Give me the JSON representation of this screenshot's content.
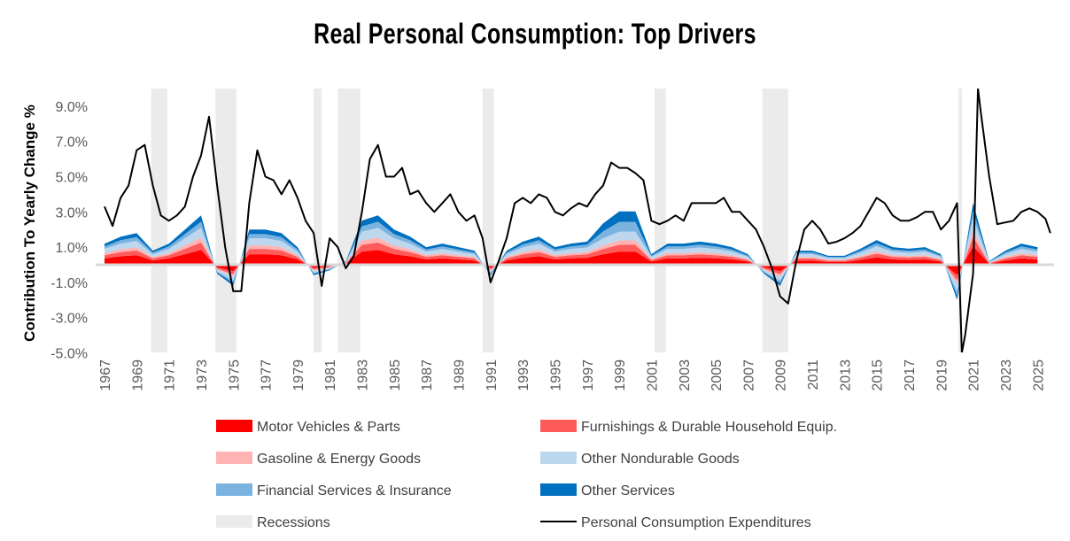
{
  "chart_data": {
    "type": "area",
    "title": "Real Personal Consumption: Top Drivers",
    "xlabel": "",
    "ylabel": "Contribution To Yearly Change %",
    "ylim": [
      -5,
      10
    ],
    "xlim": [
      1967,
      2025.9
    ],
    "y_ticks": [
      9,
      7,
      5,
      3,
      1,
      -1,
      -3,
      -5
    ],
    "y_tick_labels": [
      "9.0%",
      "7.0%",
      "5.0%",
      "3.0%",
      "1.0%",
      "-1.0%",
      "-3.0%",
      "-5.0%"
    ],
    "x_tick_labels": [
      "1967",
      "1969",
      "1971",
      "1973",
      "1975",
      "1977",
      "1979",
      "1981",
      "1983",
      "1985",
      "1987",
      "1989",
      "1991",
      "1993",
      "1995",
      "1997",
      "1999",
      "2001",
      "2003",
      "2005",
      "2007",
      "2009",
      "2011",
      "2013",
      "2015",
      "2017",
      "2019",
      "2021",
      "2023",
      "2025"
    ],
    "grid": false,
    "legend_placement": "bottom",
    "stack_years": [
      1967,
      1968,
      1969,
      1970,
      1971,
      1972,
      1973,
      1974,
      1975,
      1976,
      1977,
      1978,
      1979,
      1980,
      1981,
      1982,
      1983,
      1984,
      1985,
      1986,
      1987,
      1988,
      1989,
      1990,
      1991,
      1992,
      1993,
      1994,
      1995,
      1996,
      1997,
      1998,
      1999,
      2000,
      2001,
      2002,
      2003,
      2004,
      2005,
      2006,
      2007,
      2008,
      2009,
      2010,
      2011,
      2012,
      2013,
      2014,
      2015,
      2016,
      2017,
      2018,
      2019,
      2020,
      2021,
      2022,
      2023,
      2024,
      2025
    ],
    "series": [
      {
        "name": "Motor Vehicles & Parts",
        "color": "#FF0000",
        "values": [
          0.36,
          0.48,
          0.54,
          0.24,
          0.36,
          0.6,
          0.84,
          -0.15,
          -0.36,
          0.6,
          0.6,
          0.54,
          0.3,
          -0.18,
          -0.09,
          0.06,
          0.75,
          0.84,
          0.6,
          0.48,
          0.3,
          0.36,
          0.3,
          0.24,
          -0.18,
          0.24,
          0.39,
          0.48,
          0.3,
          0.36,
          0.39,
          0.6,
          0.75,
          0.75,
          0.18,
          0.36,
          0.36,
          0.39,
          0.36,
          0.3,
          0.18,
          -0.15,
          -0.36,
          0.24,
          0.24,
          0.15,
          0.15,
          0.27,
          0.42,
          0.3,
          0.27,
          0.3,
          0.18,
          -0.6,
          1.05,
          0.06,
          0.24,
          0.36,
          0.3
        ]
      },
      {
        "name": "Furnishings & Durable Household Equip.",
        "color": "#FF5B5B",
        "values": [
          0.18,
          0.24,
          0.27,
          0.12,
          0.18,
          0.3,
          0.42,
          -0.08,
          -0.18,
          0.3,
          0.3,
          0.27,
          0.15,
          -0.09,
          -0.05,
          0.03,
          0.38,
          0.42,
          0.3,
          0.24,
          0.15,
          0.18,
          0.15,
          0.12,
          -0.09,
          0.12,
          0.2,
          0.24,
          0.15,
          0.18,
          0.2,
          0.3,
          0.38,
          0.38,
          0.09,
          0.18,
          0.18,
          0.2,
          0.18,
          0.15,
          0.09,
          -0.08,
          -0.18,
          0.12,
          0.12,
          0.08,
          0.08,
          0.14,
          0.21,
          0.15,
          0.14,
          0.15,
          0.09,
          -0.3,
          0.53,
          0.03,
          0.12,
          0.18,
          0.15
        ]
      },
      {
        "name": "Gasoline & Energy Goods",
        "color": "#FFB3B3",
        "values": [
          0.12,
          0.16,
          0.18,
          0.08,
          0.12,
          0.2,
          0.28,
          -0.05,
          -0.12,
          0.2,
          0.2,
          0.18,
          0.1,
          -0.06,
          -0.03,
          0.02,
          0.25,
          0.28,
          0.2,
          0.16,
          0.1,
          0.12,
          0.1,
          0.08,
          -0.06,
          0.08,
          0.13,
          0.16,
          0.1,
          0.12,
          0.13,
          0.2,
          0.25,
          0.25,
          0.06,
          0.12,
          0.12,
          0.13,
          0.12,
          0.1,
          0.06,
          -0.05,
          -0.12,
          0.08,
          0.08,
          0.05,
          0.05,
          0.09,
          0.14,
          0.1,
          0.09,
          0.1,
          0.06,
          -0.2,
          0.35,
          0.02,
          0.08,
          0.12,
          0.1
        ]
      },
      {
        "name": "Other Nondurable Goods",
        "color": "#BDD7EE",
        "values": [
          0.24,
          0.32,
          0.36,
          0.16,
          0.24,
          0.4,
          0.56,
          -0.1,
          -0.24,
          0.4,
          0.4,
          0.36,
          0.2,
          -0.12,
          -0.06,
          0.04,
          0.5,
          0.56,
          0.4,
          0.32,
          0.2,
          0.24,
          0.2,
          0.16,
          -0.12,
          0.16,
          0.26,
          0.32,
          0.2,
          0.24,
          0.26,
          0.4,
          0.5,
          0.5,
          0.12,
          0.24,
          0.24,
          0.26,
          0.24,
          0.2,
          0.12,
          -0.1,
          -0.24,
          0.16,
          0.16,
          0.1,
          0.1,
          0.18,
          0.28,
          0.2,
          0.18,
          0.2,
          0.12,
          -0.4,
          0.7,
          0.04,
          0.16,
          0.24,
          0.2
        ]
      },
      {
        "name": "Financial Services & Insurance",
        "color": "#7AB3E0",
        "values": [
          0.14,
          0.19,
          0.22,
          0.1,
          0.14,
          0.24,
          0.34,
          -0.06,
          -0.14,
          0.24,
          0.24,
          0.22,
          0.12,
          -0.07,
          -0.04,
          0.02,
          0.3,
          0.34,
          0.24,
          0.19,
          0.12,
          0.14,
          0.12,
          0.1,
          -0.07,
          0.1,
          0.16,
          0.19,
          0.12,
          0.14,
          0.16,
          0.4,
          0.55,
          0.55,
          0.07,
          0.14,
          0.14,
          0.16,
          0.14,
          0.12,
          0.07,
          -0.06,
          -0.14,
          0.1,
          0.1,
          0.06,
          0.06,
          0.11,
          0.17,
          0.12,
          0.11,
          0.12,
          0.07,
          -0.24,
          0.42,
          0.02,
          0.1,
          0.14,
          0.12
        ]
      },
      {
        "name": "Other Services",
        "color": "#0070C0",
        "values": [
          0.15,
          0.2,
          0.23,
          0.1,
          0.15,
          0.26,
          0.36,
          -0.07,
          -0.15,
          0.26,
          0.26,
          0.23,
          0.13,
          -0.08,
          -0.04,
          0.03,
          0.33,
          0.36,
          0.26,
          0.21,
          0.13,
          0.16,
          0.13,
          0.1,
          -0.08,
          0.1,
          0.17,
          0.21,
          0.13,
          0.16,
          0.17,
          0.45,
          0.6,
          0.6,
          0.08,
          0.16,
          0.16,
          0.17,
          0.16,
          0.13,
          0.08,
          -0.07,
          -0.16,
          0.1,
          0.1,
          0.07,
          0.07,
          0.12,
          0.18,
          0.13,
          0.12,
          0.13,
          0.08,
          -0.26,
          0.46,
          0.03,
          0.1,
          0.16,
          0.13
        ]
      }
    ],
    "line": {
      "name": "Personal Consumption Expenditures",
      "color": "#000000",
      "x": [
        1967,
        1967.5,
        1968,
        1968.5,
        1969,
        1969.5,
        1970,
        1970.5,
        1971,
        1971.5,
        1972,
        1972.5,
        1973,
        1973.5,
        1974,
        1974.5,
        1975,
        1975.5,
        1976,
        1976.5,
        1977,
        1977.5,
        1978,
        1978.5,
        1979,
        1979.5,
        1980,
        1980.5,
        1981,
        1981.5,
        1982,
        1982.5,
        1983,
        1983.5,
        1984,
        1984.5,
        1985,
        1985.5,
        1986,
        1986.5,
        1987,
        1987.5,
        1988,
        1988.5,
        1989,
        1989.5,
        1990,
        1990.5,
        1991,
        1991.5,
        1992,
        1992.5,
        1993,
        1993.5,
        1994,
        1994.5,
        1995,
        1995.5,
        1996,
        1996.5,
        1997,
        1997.5,
        1998,
        1998.5,
        1999,
        1999.5,
        2000,
        2000.5,
        2001,
        2001.5,
        2002,
        2002.5,
        2003,
        2003.5,
        2004,
        2004.5,
        2005,
        2005.5,
        2006,
        2006.5,
        2007,
        2007.5,
        2008,
        2008.5,
        2009,
        2009.5,
        2010,
        2010.5,
        2011,
        2011.5,
        2012,
        2012.5,
        2013,
        2013.5,
        2014,
        2014.5,
        2015,
        2015.5,
        2016,
        2016.5,
        2017,
        2017.5,
        2018,
        2018.5,
        2019,
        2019.5,
        2020,
        2020.3,
        2020.5,
        2021,
        2021.3,
        2021.5,
        2022,
        2022.5,
        2023,
        2023.5,
        2024,
        2024.5,
        2025,
        2025.5,
        2025.8
      ],
      "y": [
        3.3,
        2.2,
        3.8,
        4.5,
        6.5,
        6.8,
        4.5,
        2.8,
        2.5,
        2.8,
        3.3,
        5.0,
        6.2,
        8.4,
        4.5,
        1.0,
        -1.5,
        -1.5,
        3.5,
        6.5,
        5.0,
        4.8,
        4.0,
        4.8,
        3.8,
        2.5,
        1.8,
        -1.2,
        1.5,
        1.0,
        -0.2,
        0.5,
        3.0,
        6.0,
        6.8,
        5.0,
        5.0,
        5.5,
        4.0,
        4.2,
        3.5,
        3.0,
        3.5,
        4.0,
        3.0,
        2.5,
        2.8,
        1.5,
        -1.0,
        0.2,
        1.5,
        3.5,
        3.8,
        3.5,
        4.0,
        3.8,
        3.0,
        2.8,
        3.2,
        3.5,
        3.3,
        4.0,
        4.5,
        5.8,
        5.5,
        5.5,
        5.2,
        4.8,
        2.5,
        2.3,
        2.5,
        2.8,
        2.5,
        3.5,
        3.5,
        3.5,
        3.5,
        3.8,
        3.0,
        3.0,
        2.5,
        2.0,
        1.0,
        -0.2,
        -1.8,
        -2.2,
        0.2,
        2.0,
        2.5,
        2.0,
        1.2,
        1.3,
        1.5,
        1.8,
        2.2,
        3.0,
        3.8,
        3.5,
        2.8,
        2.5,
        2.5,
        2.7,
        3.0,
        3.0,
        2.0,
        2.5,
        3.5,
        -5.0,
        -4.0,
        -0.5,
        10.0,
        8.5,
        5.0,
        2.3,
        2.4,
        2.5,
        3.0,
        3.2,
        3.0,
        2.6,
        1.8
      ]
    },
    "recessions": {
      "name": "Recessions",
      "color": "#EBEBEB",
      "periods": [
        [
          1969.9,
          1970.9
        ],
        [
          1973.9,
          1975.2
        ],
        [
          1980.0,
          1980.5
        ],
        [
          1981.5,
          1982.9
        ],
        [
          1990.5,
          1991.2
        ],
        [
          2001.2,
          2001.9
        ],
        [
          2007.9,
          2009.5
        ],
        [
          2020.1,
          2020.3
        ]
      ]
    },
    "legend": [
      {
        "label": "Motor Vehicles & Parts",
        "color": "#FF0000",
        "kind": "box"
      },
      {
        "label": "Furnishings & Durable Household Equip.",
        "color": "#FF5B5B",
        "kind": "box"
      },
      {
        "label": "Gasoline & Energy Goods",
        "color": "#FFB3B3",
        "kind": "box"
      },
      {
        "label": "Other Nondurable Goods",
        "color": "#BDD7EE",
        "kind": "box"
      },
      {
        "label": "Financial Services & Insurance",
        "color": "#7AB3E0",
        "kind": "box"
      },
      {
        "label": "Other Services",
        "color": "#0070C0",
        "kind": "box"
      },
      {
        "label": "Recessions",
        "color": "#EBEBEB",
        "kind": "box"
      },
      {
        "label": "Personal Consumption Expenditures",
        "color": "#000000",
        "kind": "line"
      }
    ]
  }
}
